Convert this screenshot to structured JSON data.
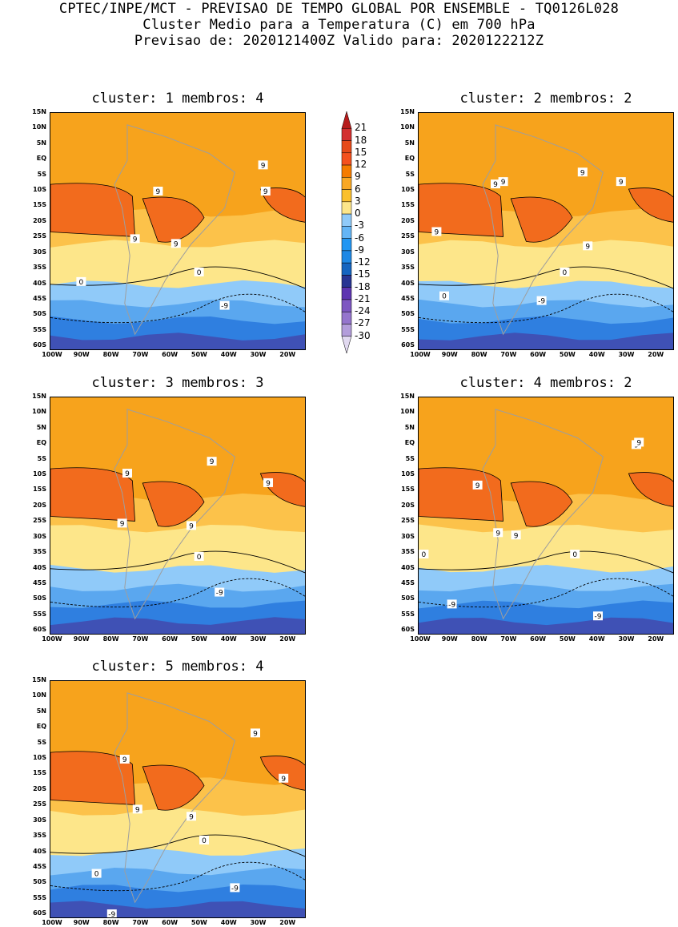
{
  "header": {
    "line1": "CPTEC/INPE/MCT - PREVISAO DE TEMPO GLOBAL POR ENSEMBLE - TQ0126L028",
    "line2": "Cluster Medio para a Temperatura (C) em 700 hPa",
    "line3": "Previsao de: 2020121400Z   Valido para: 2020122212Z"
  },
  "axes": {
    "y_ticks": [
      "15N",
      "10N",
      "5N",
      "EQ",
      "5S",
      "10S",
      "15S",
      "20S",
      "25S",
      "30S",
      "35S",
      "40S",
      "45S",
      "50S",
      "55S",
      "60S"
    ],
    "x_ticks": [
      "100W",
      "90W",
      "80W",
      "70W",
      "60W",
      "50W",
      "40W",
      "30W",
      "20W"
    ]
  },
  "colorbar": {
    "labels": [
      "21",
      "18",
      "15",
      "12",
      "9",
      "6",
      "3",
      "0",
      "-3",
      "-6",
      "-9",
      "-12",
      "-15",
      "-18",
      "-21",
      "-24",
      "-27",
      "-30"
    ],
    "colors": [
      "#b71c1c",
      "#d32f2f",
      "#e64a19",
      "#f4511e",
      "#f57c00",
      "#f9a825",
      "#fbc02d",
      "#fde68a",
      "#90caf9",
      "#64b5f6",
      "#2196f3",
      "#1e88e5",
      "#1565c0",
      "#283593",
      "#5e35b1",
      "#7e57c2",
      "#9575cd",
      "#b39ddb",
      "#e1d9f0"
    ]
  },
  "panels": [
    {
      "title": "cluster: 1   membros: 4",
      "labels": [
        "9",
        "9",
        "9",
        "9",
        "9",
        "0",
        "0",
        "-9"
      ]
    },
    {
      "title": "cluster: 2   membros: 2",
      "labels": [
        "9",
        "9",
        "9",
        "9",
        "9",
        "9",
        "0",
        "0",
        "-9"
      ]
    },
    {
      "title": "cluster: 3   membros: 3",
      "labels": [
        "9",
        "9",
        "9",
        "9",
        "9",
        "0",
        "-9"
      ]
    },
    {
      "title": "cluster: 4   membros: 2",
      "labels": [
        "9",
        "9",
        "9",
        "9",
        "9",
        "0",
        "0",
        "-9",
        "-9"
      ]
    },
    {
      "title": "cluster: 5   membros: 4",
      "labels": [
        "9",
        "9",
        "9",
        "9",
        "9",
        "0",
        "0",
        "-9",
        "-9"
      ]
    }
  ]
}
